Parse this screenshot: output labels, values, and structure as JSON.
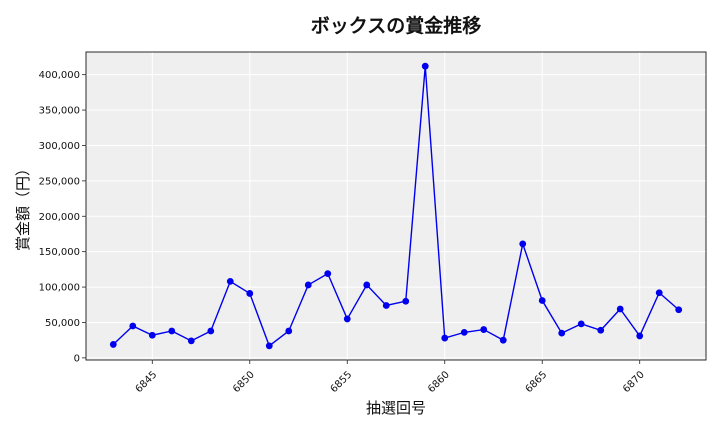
{
  "chart_data": {
    "type": "line",
    "title": "ボックスの賞金推移",
    "xlabel": "抽選回号",
    "ylabel": "賞金額（円）",
    "x": [
      6843,
      6844,
      6845,
      6846,
      6847,
      6848,
      6849,
      6850,
      6851,
      6852,
      6853,
      6854,
      6855,
      6856,
      6857,
      6858,
      6859,
      6860,
      6861,
      6862,
      6863,
      6864,
      6865,
      6866,
      6867,
      6868,
      6869,
      6870,
      6871,
      6872
    ],
    "series": [
      {
        "values": [
          19000,
          45000,
          32000,
          38000,
          24000,
          38000,
          108000,
          91000,
          17000,
          38000,
          103000,
          119000,
          55000,
          103000,
          74000,
          80000,
          412000,
          28000,
          36000,
          40000,
          25000,
          161000,
          81000,
          35000,
          48000,
          39000,
          69000,
          31000,
          92000,
          68000
        ]
      }
    ],
    "xlim": [
      6841.6,
      6873.4
    ],
    "ylim": [
      -3000,
      432000
    ],
    "xticks": [
      6845,
      6850,
      6855,
      6860,
      6865,
      6870
    ],
    "yticks": [
      0,
      50000,
      100000,
      150000,
      200000,
      250000,
      300000,
      350000,
      400000
    ],
    "ytick_labels": [
      "0",
      "50,000",
      "100,000",
      "150,000",
      "200,000",
      "250,000",
      "300,000",
      "350,000",
      "400,000"
    ],
    "grid": true,
    "legend": "none",
    "line_color": "#0000ee",
    "background_color": "#efefef"
  }
}
